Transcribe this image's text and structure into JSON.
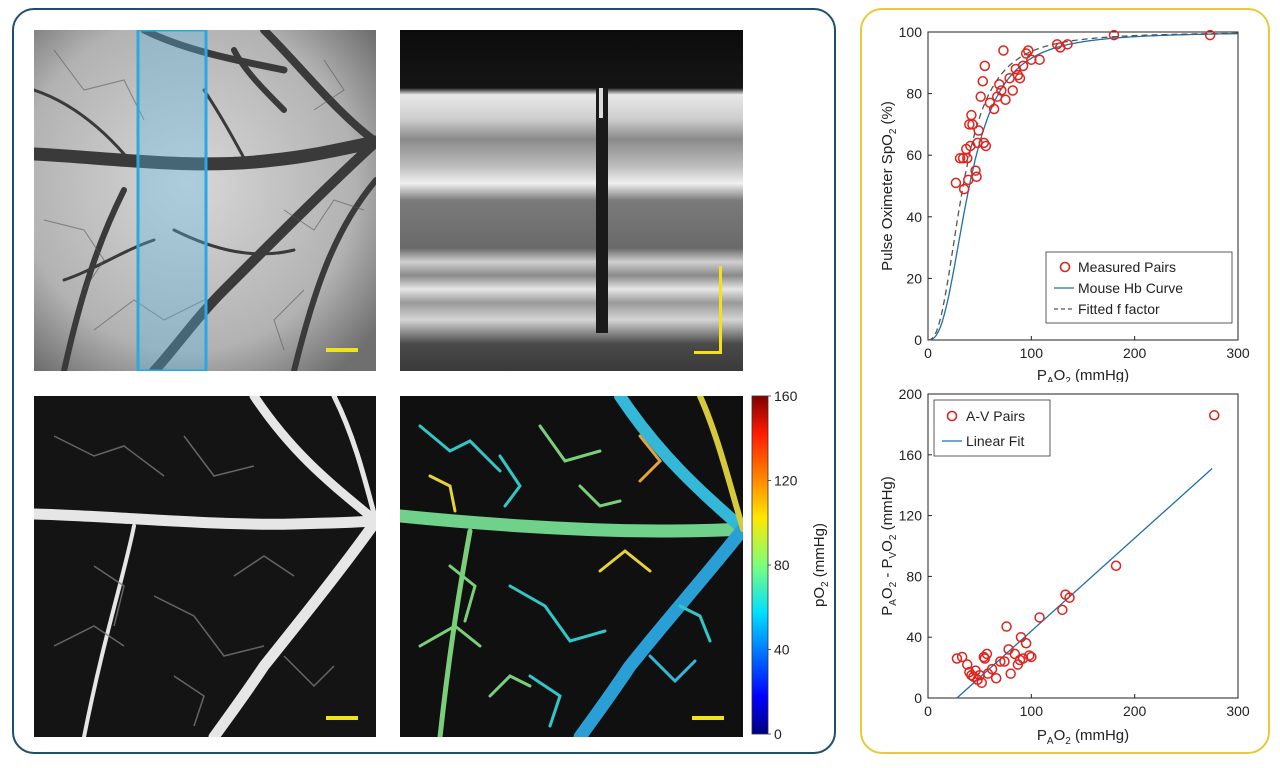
{
  "images": {
    "fundus": {
      "scalebar_color": "#f2e21a",
      "roi_color": "#29a9e0"
    },
    "oct": {
      "scalebar_color": "#f2e21a"
    },
    "angiogram": {
      "scalebar_color": "#f2e21a"
    },
    "po2_map": {
      "scalebar_color": "#f2e21a"
    }
  },
  "colorbar": {
    "label_main": "pO",
    "label_sub": "2",
    "label_unit": " (mmHg)",
    "ticks": [
      "160",
      "120",
      "80",
      "40",
      "0"
    ],
    "range": [
      0,
      160
    ]
  },
  "chart_data": [
    {
      "type": "scatter",
      "xlabel_main": "P",
      "xlabel_sub1": "A",
      "xlabel_mid": "O",
      "xlabel_sub2": "2",
      "xlabel_unit": " (mmHg)",
      "ylabel_main": "Pulse Oximeter SpO",
      "ylabel_sub": "2",
      "ylabel_unit": " (%)",
      "xlim": [
        0,
        300
      ],
      "ylim": [
        0,
        100
      ],
      "xticks": [
        "0",
        "100",
        "200",
        "300"
      ],
      "yticks": [
        "0",
        "20",
        "40",
        "60",
        "80",
        "100"
      ],
      "legend_position": "bottom-right",
      "series": [
        {
          "name": "Measured Pairs",
          "kind": "scatter",
          "color": "#e0231c",
          "points": [
            [
              27,
              51
            ],
            [
              31,
              59
            ],
            [
              34,
              59
            ],
            [
              35,
              49
            ],
            [
              37,
              62
            ],
            [
              38,
              59
            ],
            [
              39,
              52
            ],
            [
              40,
              70
            ],
            [
              41,
              63
            ],
            [
              42,
              73
            ],
            [
              43,
              70
            ],
            [
              46,
              55
            ],
            [
              47,
              53
            ],
            [
              48,
              64
            ],
            [
              49,
              68
            ],
            [
              51,
              79
            ],
            [
              53,
              84
            ],
            [
              54,
              64
            ],
            [
              55,
              89
            ],
            [
              56,
              63
            ],
            [
              60,
              77
            ],
            [
              64,
              75
            ],
            [
              67,
              79
            ],
            [
              69,
              83
            ],
            [
              71,
              81
            ],
            [
              73,
              94
            ],
            [
              75,
              78
            ],
            [
              79,
              85
            ],
            [
              82,
              81
            ],
            [
              85,
              88
            ],
            [
              87,
              86
            ],
            [
              89,
              85
            ],
            [
              92,
              89
            ],
            [
              95,
              93
            ],
            [
              97,
              94
            ],
            [
              100,
              91
            ],
            [
              108,
              91
            ],
            [
              125,
              96
            ],
            [
              128,
              95
            ],
            [
              135,
              96
            ],
            [
              180,
              99
            ],
            [
              273,
              99
            ]
          ]
        },
        {
          "name": "Mouse Hb Curve",
          "kind": "line",
          "color": "#1f6fa8",
          "p50": 40,
          "n": 2.59
        },
        {
          "name": "Fitted f factor",
          "kind": "dashed",
          "color": "#555555",
          "p50": 34,
          "n": 2.5
        }
      ]
    },
    {
      "type": "scatter",
      "xlabel_main": "P",
      "xlabel_sub1": "A",
      "xlabel_mid": "O",
      "xlabel_sub2": "2",
      "xlabel_unit": " (mmHg)",
      "ylabel_a": "P",
      "ylabel_sub_a": "A",
      "ylabel_b": "O",
      "ylabel_sub_b": "2",
      "ylabel_c": " - P",
      "ylabel_sub_c": "V",
      "ylabel_d": "O",
      "ylabel_sub_d": "2",
      "ylabel_unit": " (mmHg)",
      "xlim": [
        0,
        300
      ],
      "ylim": [
        0,
        200
      ],
      "xticks": [
        "0",
        "100",
        "200",
        "300"
      ],
      "yticks": [
        "0",
        "40",
        "80",
        "120",
        "160",
        "200"
      ],
      "legend_position": "top-left",
      "series": [
        {
          "name": "A-V Pairs",
          "kind": "scatter",
          "color": "#e0231c",
          "points": [
            [
              28,
              26
            ],
            [
              33,
              27
            ],
            [
              38,
              22
            ],
            [
              40,
              17
            ],
            [
              42,
              15
            ],
            [
              44,
              14
            ],
            [
              46,
              18
            ],
            [
              48,
              12
            ],
            [
              50,
              15
            ],
            [
              52,
              10
            ],
            [
              54,
              27
            ],
            [
              55,
              26
            ],
            [
              57,
              29
            ],
            [
              58,
              16
            ],
            [
              62,
              19
            ],
            [
              66,
              13
            ],
            [
              70,
              24
            ],
            [
              74,
              24
            ],
            [
              76,
              47
            ],
            [
              78,
              32
            ],
            [
              80,
              16
            ],
            [
              84,
              29
            ],
            [
              87,
              22
            ],
            [
              89,
              25
            ],
            [
              90,
              40
            ],
            [
              92,
              26
            ],
            [
              95,
              36
            ],
            [
              98,
              28
            ],
            [
              100,
              27
            ],
            [
              108,
              53
            ],
            [
              130,
              58
            ],
            [
              133,
              68
            ],
            [
              137,
              66
            ],
            [
              182,
              87
            ],
            [
              277,
              186
            ]
          ]
        },
        {
          "name": "Linear Fit",
          "kind": "line",
          "color": "#1f6fa8",
          "x": [
            28,
            275
          ],
          "y": [
            0,
            151
          ]
        }
      ]
    }
  ]
}
